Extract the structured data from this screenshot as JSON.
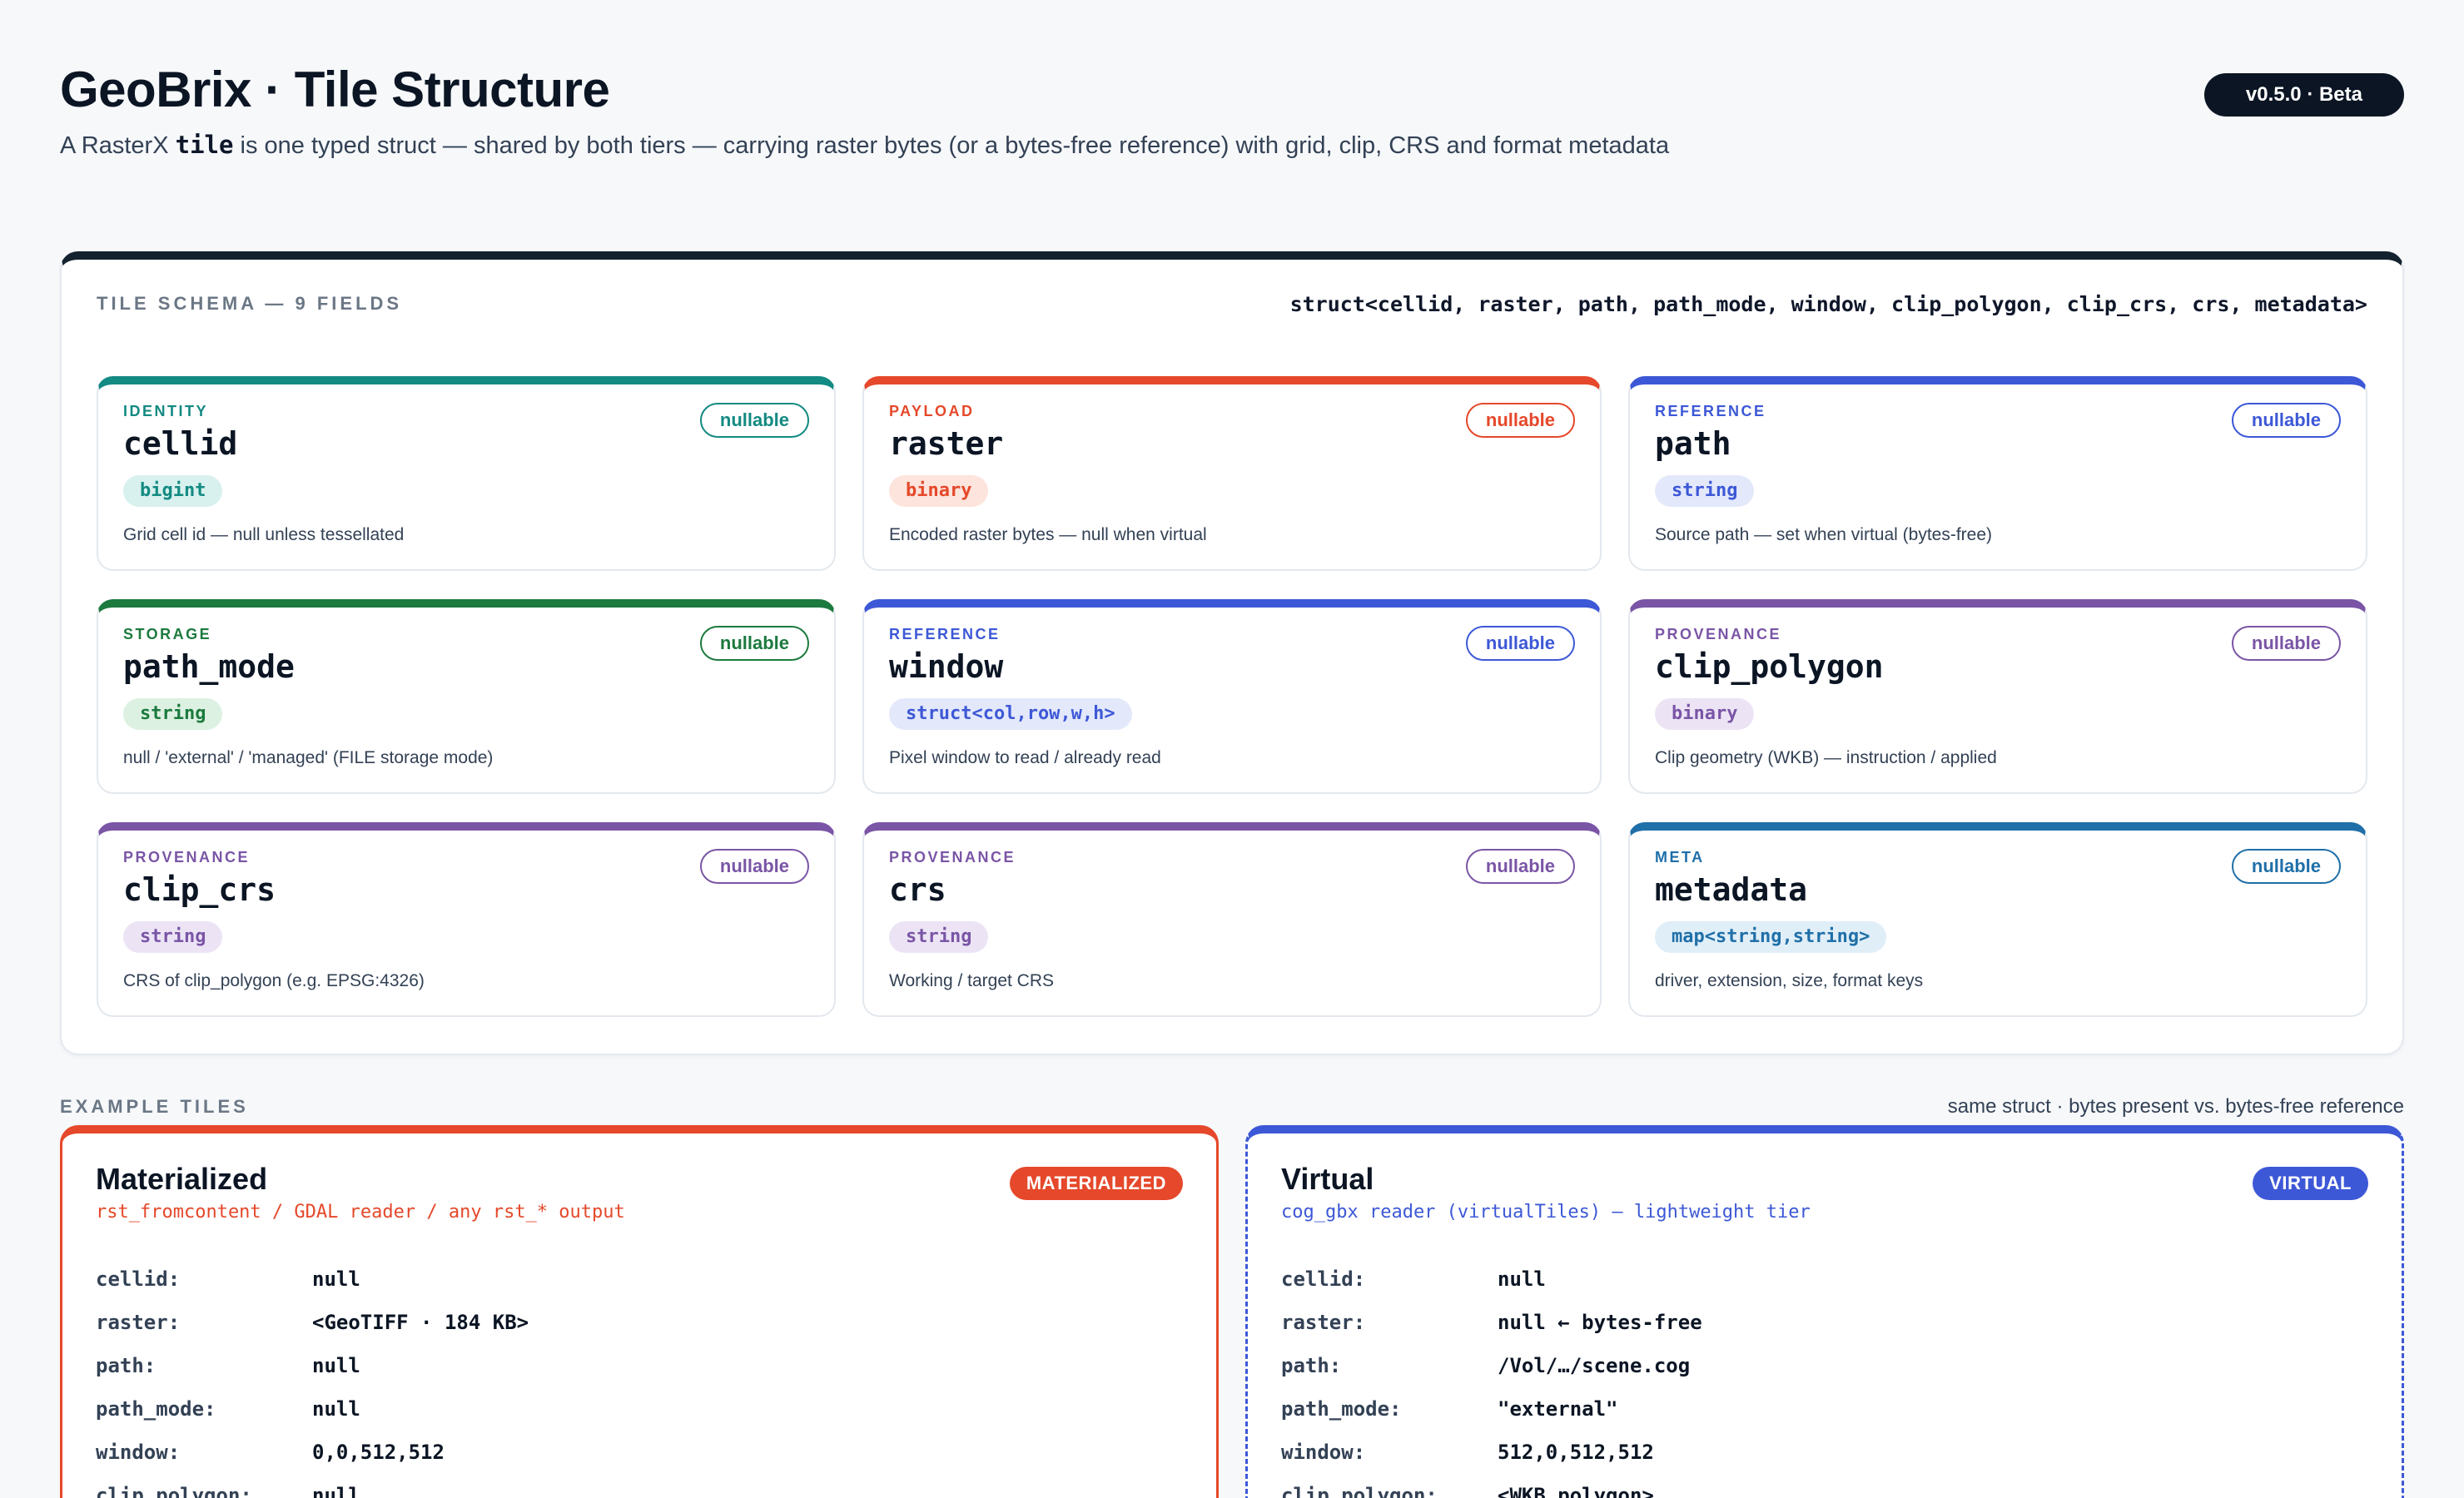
{
  "header": {
    "title": "GeoBrix · Tile Structure",
    "subtitle_pre": "A RasterX ",
    "subtitle_code": "tile",
    "subtitle_post": " is one typed struct — shared by both tiers — carrying raster bytes (or a bytes-free reference) with grid, clip, CRS and format metadata",
    "version": "v0.5.0 · Beta"
  },
  "schema": {
    "label": "TILE SCHEMA — 9 FIELDS",
    "signature": "struct<cellid, raster, path, path_mode, window, clip_polygon, clip_crs, crs, metadata>",
    "nullable_label": "nullable",
    "fields": [
      {
        "category": "IDENTITY",
        "name": "cellid",
        "type": "bigint",
        "desc": "Grid cell id — null unless tessellated",
        "color": "#138a82",
        "type_bg": "#d8f1ee"
      },
      {
        "category": "PAYLOAD",
        "name": "raster",
        "type": "binary",
        "desc": "Encoded raster bytes — null when virtual",
        "color": "#e5482a",
        "type_bg": "#fde4dc"
      },
      {
        "category": "REFERENCE",
        "name": "path",
        "type": "string",
        "desc": "Source path — set when virtual (bytes-free)",
        "color": "#3d58d6",
        "type_bg": "#e3e8fb"
      },
      {
        "category": "STORAGE",
        "name": "path_mode",
        "type": "string",
        "desc": "null / 'external' / 'managed' (FILE storage mode)",
        "color": "#1c7a3e",
        "type_bg": "#dcf1e2"
      },
      {
        "category": "REFERENCE",
        "name": "window",
        "type": "struct<col,row,w,h>",
        "desc": "Pixel window to read / already read",
        "color": "#3d58d6",
        "type_bg": "#e3e8fb"
      },
      {
        "category": "PROVENANCE",
        "name": "clip_polygon",
        "type": "binary",
        "desc": "Clip geometry (WKB) — instruction / applied",
        "color": "#7a55a6",
        "type_bg": "#ece4f5"
      },
      {
        "category": "PROVENANCE",
        "name": "clip_crs",
        "type": "string",
        "desc": "CRS of clip_polygon (e.g. EPSG:4326)",
        "color": "#7a55a6",
        "type_bg": "#ece4f5"
      },
      {
        "category": "PROVENANCE",
        "name": "crs",
        "type": "string",
        "desc": "Working / target CRS",
        "color": "#7a55a6",
        "type_bg": "#ece4f5"
      },
      {
        "category": "META",
        "name": "metadata",
        "type": "map<string,string>",
        "desc": "driver, extension, size, format keys",
        "color": "#1f6fa8",
        "type_bg": "#e0eef8"
      }
    ]
  },
  "examples": {
    "label": "EXAMPLE TILES",
    "note": "same struct · bytes present vs. bytes-free reference",
    "materialized": {
      "title": "Materialized",
      "subtitle": "rst_fromcontent / GDAL reader / any rst_* output",
      "badge": "MATERIALIZED",
      "color": "#e5482a",
      "rows": [
        {
          "key": "cellid:",
          "value": "null"
        },
        {
          "key": "raster:",
          "value": "<GeoTIFF · 184 KB>"
        },
        {
          "key": "path:",
          "value": "null"
        },
        {
          "key": "path_mode:",
          "value": "null"
        },
        {
          "key": "window:",
          "value": "0,0,512,512"
        },
        {
          "key": "clip_polygon:",
          "value": "null"
        }
      ]
    },
    "virtual": {
      "title": "Virtual",
      "subtitle": "cog_gbx reader (virtualTiles) — lightweight tier",
      "badge": "VIRTUAL",
      "color": "#3d58d6",
      "rows": [
        {
          "key": "cellid:",
          "value": "null"
        },
        {
          "key": "raster:",
          "value": "null ← bytes-free"
        },
        {
          "key": "path:",
          "value": "/Vol/…/scene.cog"
        },
        {
          "key": "path_mode:",
          "value": "\"external\""
        },
        {
          "key": "window:",
          "value": "512,0,512,512"
        },
        {
          "key": "clip_polygon:",
          "value": "<WKB polygon>"
        }
      ]
    }
  }
}
